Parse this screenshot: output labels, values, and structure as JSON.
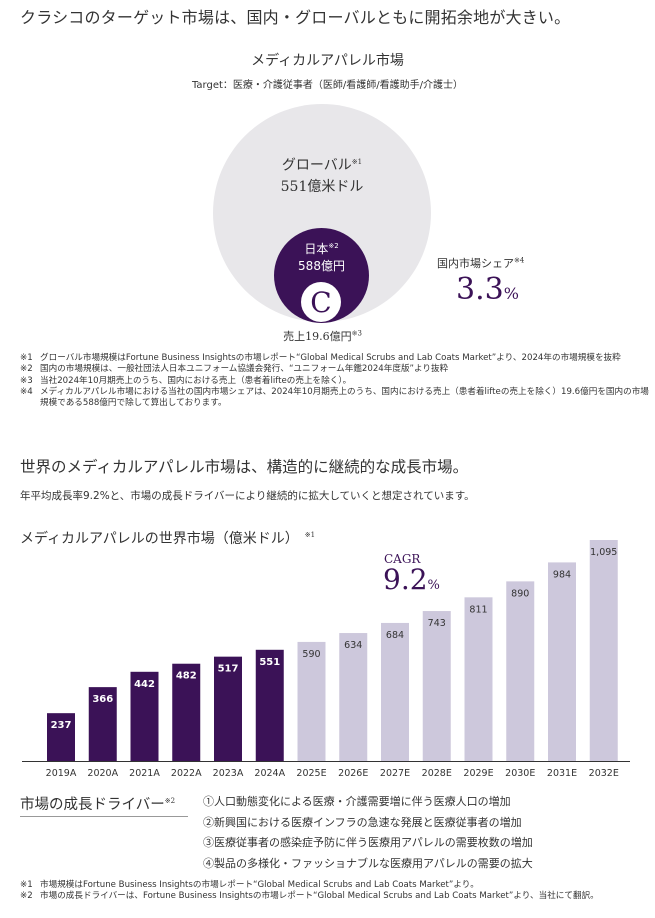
{
  "headline": "クラシコのターゲット市場は、国内・グローバルともに開拓余地が大きい。",
  "market": {
    "title": "メディカルアパレル市場",
    "target": "Target：医療・介護従事者（医師/看護師/看護助手/介護士）",
    "global": {
      "label": "グローバル",
      "note": "※1",
      "value": "551億米ドル"
    },
    "japan": {
      "label": "日本",
      "note": "※2",
      "value": "588億円"
    },
    "logo_letter": "C",
    "sales": {
      "label": "売上19.6億円",
      "note": "※3"
    },
    "share": {
      "label": "国内市場シェア",
      "note": "※4",
      "value": "3.3",
      "unit": "%"
    },
    "colors": {
      "global": "#e8e7ea",
      "japan": "#3b1257",
      "accent": "#3b1257"
    }
  },
  "notes_top": [
    {
      "mark": "※1",
      "text": "グローバル市場規模はFortune Business Insightsの市場レポート“Global Medical Scrubs and Lab Coats Market”より、2024年の市場規模を抜粋"
    },
    {
      "mark": "※2",
      "text": "国内の市場規模は、一般社団法人日本ユニフォーム協議会発行、“ユニフォーム年鑑2024年度版”より抜粋"
    },
    {
      "mark": "※3",
      "text": "当社2024年10月期売上のうち、国内における売上（患者着lifteの売上を除く）。"
    },
    {
      "mark": "※4",
      "text": "メディカルアパレル市場における当社の国内市場シェアは、2024年10月期売上のうち、国内における売上（患者着lifteの売上を除く）19.6億円を国内の市場規模である588億円で除して算出しております。"
    }
  ],
  "growth": {
    "heading": "世界のメディカルアパレル市場は、構造的に継続的な成長市場。",
    "subheading": "年平均成長率9.2%と、市場の成長ドライバーにより継続的に拡大していくと想定されています。"
  },
  "chart_data": {
    "type": "bar",
    "title": "メディカルアパレルの世界市場（億米ドル）",
    "title_note": "※1",
    "categories": [
      "2019A",
      "2020A",
      "2021A",
      "2022A",
      "2023A",
      "2024A",
      "2025E",
      "2026E",
      "2027E",
      "2028E",
      "2029E",
      "2030E",
      "2031E",
      "2032E"
    ],
    "values": [
      237,
      366,
      442,
      482,
      517,
      551,
      590,
      634,
      684,
      743,
      811,
      890,
      984,
      1095
    ],
    "value_labels": [
      "237",
      "366",
      "442",
      "482",
      "517",
      "551",
      "590",
      "634",
      "684",
      "743",
      "811",
      "890",
      "984",
      "1,095"
    ],
    "series_kind": [
      "actual",
      "actual",
      "actual",
      "actual",
      "actual",
      "actual",
      "estimate",
      "estimate",
      "estimate",
      "estimate",
      "estimate",
      "estimate",
      "estimate",
      "estimate"
    ],
    "colors": {
      "actual": "#3b1257",
      "estimate": "#cdc8dc",
      "actual_label": "#ffffff",
      "estimate_label": "#333333"
    },
    "ylim": [
      0,
      1095
    ],
    "xlabel": "",
    "ylabel": "",
    "grid": false,
    "annotation": {
      "label": "CAGR",
      "value": "9.2",
      "unit": "%"
    }
  },
  "drivers": {
    "heading": "市場の成長ドライバー",
    "note": "※2",
    "items": [
      "①人口動態変化による医療・介護需要増に伴う医療人口の増加",
      "②新興国における医療インフラの急速な発展と医療従事者の増加",
      "③医療従事者の感染症予防に伴う医療用アパレルの需要枚数の増加",
      "④製品の多様化・ファッショナブルな医療用アパレルの需要の拡大"
    ]
  },
  "notes_bottom": [
    {
      "mark": "※1",
      "text": "市場規模はFortune Business Insightsの市場レポート“Global Medical Scrubs and Lab Coats Market”より。"
    },
    {
      "mark": "※2",
      "text": "市場の成長ドライバーは、Fortune Business Insightsの市場レポート“Global Medical Scrubs and Lab Coats Market”より、当社にて翻訳。"
    }
  ]
}
